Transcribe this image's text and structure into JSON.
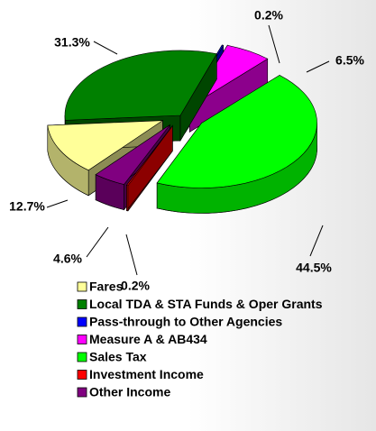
{
  "chart_data": {
    "type": "pie",
    "categories": [
      "Fares",
      "Local TDA & STA Funds & Oper Grants",
      "Pass-through to Other Agencies",
      "Measure A & AB434",
      "Sales Tax",
      "Investment Income",
      "Other Income"
    ],
    "values": [
      12.7,
      31.3,
      0.2,
      6.5,
      44.5,
      0.2,
      4.6
    ],
    "value_labels": [
      "12.7%",
      "31.3%",
      "0.2%",
      "6.5%",
      "44.5%",
      "0.2%",
      "4.6%"
    ],
    "colors": [
      "#ffff99",
      "#008000",
      "#0000ff",
      "#ff00ff",
      "#00ff00",
      "#ff0000",
      "#800080"
    ]
  }
}
